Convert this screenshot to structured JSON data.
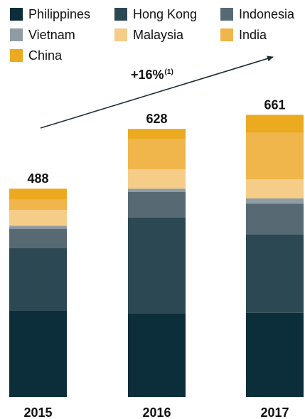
{
  "chart_data": {
    "type": "bar",
    "stacked": true,
    "categories": [
      "2015",
      "2016",
      "2017"
    ],
    "totals": [
      "488",
      "628",
      "661"
    ],
    "series": [
      {
        "name": "Philippines",
        "color": "#0c2d3a",
        "values": [
          203,
          196,
          197
        ]
      },
      {
        "name": "Hong Kong",
        "color": "#2c4853",
        "values": [
          146,
          224,
          184
        ]
      },
      {
        "name": "Indonesia",
        "color": "#576a74",
        "values": [
          45,
          60,
          72
        ]
      },
      {
        "name": "Vietnam",
        "color": "#8f9ca3",
        "values": [
          7,
          8,
          12
        ]
      },
      {
        "name": "Malaysia",
        "color": "#f5cd88",
        "values": [
          37,
          45,
          45
        ]
      },
      {
        "name": "India",
        "color": "#f0b64b",
        "values": [
          24,
          72,
          109
        ]
      },
      {
        "name": "China",
        "color": "#ecaa21",
        "values": [
          26,
          23,
          42
        ]
      }
    ],
    "annotation": {
      "label": "+16%",
      "footnote": "(1)"
    },
    "legend_position": "top"
  }
}
